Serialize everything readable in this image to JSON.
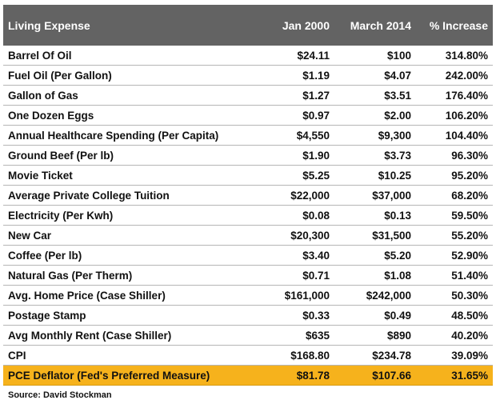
{
  "table": {
    "header": [
      "Living Expense",
      "Jan 2000",
      "March 2014",
      "% Increase"
    ],
    "rows": [
      [
        "Barrel Of Oil",
        "$24.11",
        "$100",
        "314.80%"
      ],
      [
        "Fuel Oil (Per Gallon)",
        "$1.19",
        "$4.07",
        "242.00%"
      ],
      [
        "Gallon of Gas",
        "$1.27",
        "$3.51",
        "176.40%"
      ],
      [
        "One Dozen Eggs",
        "$0.97",
        "$2.00",
        "106.20%"
      ],
      [
        "Annual Healthcare Spending (Per Capita)",
        "$4,550",
        "$9,300",
        "104.40%"
      ],
      [
        "Ground Beef (Per lb)",
        "$1.90",
        "$3.73",
        "96.30%"
      ],
      [
        "Movie Ticket",
        "$5.25",
        "$10.25",
        "95.20%"
      ],
      [
        "Average Private College Tuition",
        "$22,000",
        "$37,000",
        "68.20%"
      ],
      [
        "Electricity (Per Kwh)",
        "$0.08",
        "$0.13",
        "59.50%"
      ],
      [
        "New Car",
        "$20,300",
        "$31,500",
        "55.20%"
      ],
      [
        "Coffee (Per lb)",
        "$3.40",
        "$5.20",
        "52.90%"
      ],
      [
        "Natural Gas (Per Therm)",
        "$0.71",
        "$1.08",
        "51.40%"
      ],
      [
        "Avg. Home Price (Case Shiller)",
        "$161,000",
        "$242,000",
        "50.30%"
      ],
      [
        "Postage Stamp",
        "$0.33",
        "$0.49",
        "48.50%"
      ],
      [
        "Avg Monthly Rent (Case Shiller)",
        "$635",
        "$890",
        "40.20%"
      ],
      [
        "CPI",
        "$168.80",
        "$234.78",
        "39.09%"
      ],
      [
        "PCE Deflator (Fed's Preferred Measure)",
        "$81.78",
        "$107.66",
        "31.65%"
      ]
    ],
    "highlight_row": 16
  },
  "source": "Source: David Stockman"
}
